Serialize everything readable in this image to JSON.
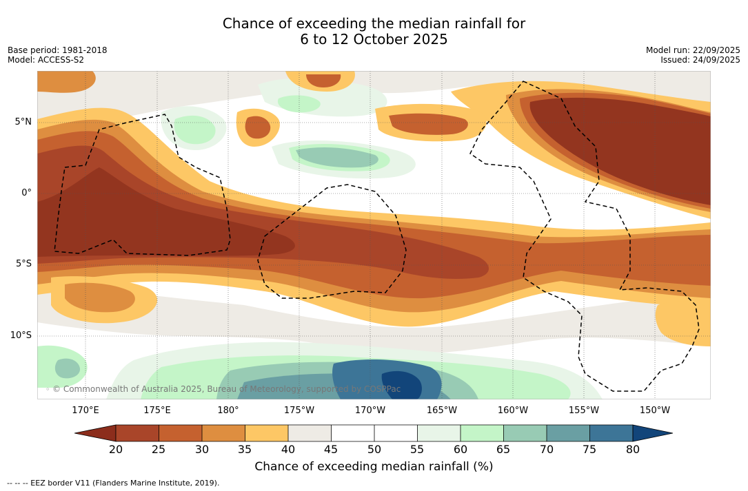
{
  "header": {
    "title_line1": "Chance of exceeding the median rainfall for",
    "title_line2": "6 to 12 October 2025",
    "base_period": "Base period: 1981-2018",
    "model": "Model: ACCESS-S2",
    "model_run": "Model run: 22/09/2025",
    "issued": "Issued: 24/09/2025"
  },
  "map": {
    "lon_labels": [
      "170°E",
      "175°E",
      "180°",
      "175°W",
      "170°W",
      "165°W",
      "160°W",
      "155°W",
      "150°W"
    ],
    "lat_labels": [
      "5°N",
      "0°",
      "5°S",
      "10°S"
    ],
    "copyright": "© Commonwealth of Australia 2025, Bureau of Meteorology, supported by COSPPac"
  },
  "colorbar": {
    "title": "Chance of exceeding median rainfall (%)",
    "ticks": [
      "20",
      "25",
      "30",
      "35",
      "40",
      "45",
      "50",
      "55",
      "60",
      "65",
      "70",
      "75",
      "80"
    ],
    "colors": {
      "lt20": "#8c2d1c",
      "c20_25": "#a94529",
      "c25_30": "#c5612f",
      "c30_35": "#de8e40",
      "c35_40": "#fdc765",
      "c40_45": "#eeebe5",
      "c45_50": "#ffffff",
      "c50_55": "#ffffff",
      "c55_60": "#e8f5e8",
      "c60_65": "#c4f5c8",
      "c65_70": "#98cbb4",
      "c70_75": "#6a9fa3",
      "c75_80": "#3d7597",
      "gt80": "#12457a",
      "dry_core": "#93351f"
    }
  },
  "footnote": "--  --  -- EEZ border V11 (Flanders Marine Institute, 2019)."
}
